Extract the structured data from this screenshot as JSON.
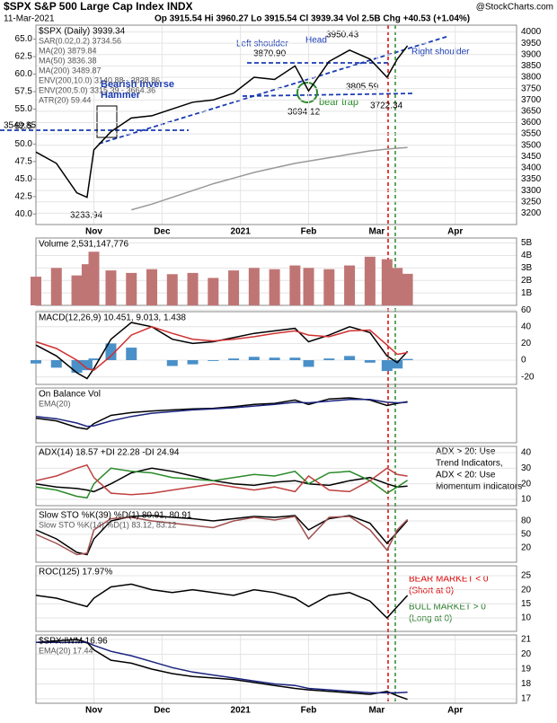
{
  "header": {
    "title": "$SPX S&P 500 Large Cap Index INDX",
    "source": "@StockCharts.com",
    "date": "11-Mar-2021",
    "quote": "Op 3915.54 Hi 3960.27 Lo 3915.54 Cl 3939.34 Vol 2.5B Chg +40.53 (+1.04%)"
  },
  "chart_data": [
    {
      "type": "line",
      "legend": [
        "$SPX (Daily) 3939.34",
        "SAR(0.02,0.2) 3734.56",
        "MA(20) 3879.84",
        "MA(50) 3836.38",
        "MA(200) 3489.87",
        "ENV(200,10.0) 3140.88 - 3838.86",
        "ENV(200,5.0) 3315.39 - 3664.36",
        "ATR(20) 59.44"
      ],
      "x": [
        0,
        6,
        12,
        15,
        17,
        22,
        28,
        34,
        40,
        46,
        52,
        58,
        64,
        70,
        76,
        80,
        86,
        92,
        98,
        103,
        106,
        109
      ],
      "xlim": [
        0,
        141
      ],
      "xticks": [
        {
          "value": 17,
          "label": "Nov"
        },
        {
          "value": 37,
          "label": "Dec"
        },
        {
          "value": 60,
          "label": "2021"
        },
        {
          "value": 80,
          "label": "Feb"
        },
        {
          "value": 100,
          "label": "Mar"
        },
        {
          "value": 123,
          "label": "Apr"
        }
      ],
      "ylim": [
        3150,
        4030
      ],
      "yticks": [
        3200,
        3250,
        3300,
        3350,
        3400,
        3450,
        3500,
        3550,
        3600,
        3650,
        3700,
        3750,
        3800,
        3850,
        3900,
        3950,
        4000
      ],
      "y2lim": [
        38.5,
        67
      ],
      "y2ticks": [
        {
          "value": 40,
          "label": "40.0"
        },
        42.5,
        {
          "value": 45,
          "label": "45.0"
        },
        47.5,
        {
          "value": 50,
          "label": "50.0"
        },
        52.5,
        {
          "value": 55,
          "label": "55.0"
        },
        57.5,
        {
          "value": 60,
          "label": "60.0"
        },
        62.5,
        {
          "value": 65,
          "label": "65.0"
        }
      ],
      "series": [
        {
          "color": "#000000",
          "type": "line",
          "values": [
            3470,
            3420,
            3290,
            3270,
            3480,
            3560,
            3620,
            3630,
            3660,
            3690,
            3700,
            3730,
            3800,
            3790,
            3850,
            3740,
            3870,
            3920,
            3880,
            3800,
            3880,
            3939.34
          ]
        },
        {
          "color": "#999999",
          "type": "line",
          "values": [
            null,
            null,
            null,
            null,
            null,
            null,
            3215,
            3240,
            3270,
            3300,
            3330,
            3355,
            3380,
            3400,
            3420,
            3430,
            3445,
            3460,
            3475,
            3483,
            3487,
            3489.87
          ]
        }
      ],
      "annotations": [
        "Left shoulder",
        "Head",
        "Right shoulder",
        "3950.43",
        "3870.90",
        "3805.59",
        "3694.12",
        "3722.34",
        "bear trap",
        "Bearish Inverse",
        "Hammer",
        "3233.94",
        "3549.85"
      ]
    },
    {
      "type": "bar",
      "legend": [
        "Volume 2,531,147,776"
      ],
      "x": [
        0,
        6,
        12,
        15,
        17,
        22,
        28,
        34,
        40,
        46,
        52,
        58,
        64,
        70,
        76,
        80,
        86,
        92,
        98,
        103,
        106,
        109
      ],
      "xlim": [
        0,
        141
      ],
      "ylim": [
        0,
        5.4
      ],
      "yticks": [
        {
          "value": 1,
          "label": "1B"
        },
        {
          "value": 2,
          "label": "2B"
        },
        {
          "value": 3,
          "label": "3B"
        },
        {
          "value": 4,
          "label": "4B"
        },
        {
          "value": 5,
          "label": "5B"
        }
      ],
      "series": [
        {
          "color": "#c07575",
          "type": "bar",
          "values": [
            2.3,
            3.0,
            2.4,
            3.3,
            4.3,
            2.8,
            2.6,
            2.9,
            2.5,
            2.6,
            2.2,
            2.8,
            3.0,
            2.9,
            3.2,
            3.0,
            2.9,
            3.2,
            3.9,
            3.7,
            3.0,
            2.53
          ]
        }
      ]
    },
    {
      "type": "line",
      "legend": [
        "MACD(12,26,9) 10.451, 9.013, 1.438"
      ],
      "x": [
        0,
        6,
        12,
        15,
        17,
        22,
        28,
        34,
        40,
        46,
        52,
        58,
        64,
        70,
        76,
        80,
        86,
        92,
        98,
        103,
        106,
        109
      ],
      "xlim": [
        0,
        141
      ],
      "ylim": [
        -29,
        58
      ],
      "yticks": [
        -20,
        0,
        20,
        40,
        60
      ],
      "series": [
        {
          "color": "#4a90c8",
          "type": "bar",
          "values": [
            -4,
            -9,
            -15,
            -12,
            2,
            20,
            15,
            0,
            -7,
            -5,
            -1,
            2,
            4,
            3,
            3,
            -8,
            2,
            5,
            -3,
            -13,
            -10,
            1.438
          ]
        },
        {
          "color": "#000000",
          "type": "line",
          "values": [
            18,
            5,
            -15,
            -22,
            -10,
            25,
            45,
            40,
            25,
            20,
            22,
            27,
            32,
            35,
            38,
            22,
            30,
            40,
            33,
            5,
            -3,
            10.451
          ]
        },
        {
          "color": "#d03030",
          "type": "line",
          "values": [
            22,
            14,
            0,
            -10,
            -12,
            5,
            30,
            40,
            32,
            25,
            23,
            25,
            28,
            32,
            35,
            30,
            28,
            35,
            36,
            18,
            7,
            9.013
          ]
        }
      ]
    },
    {
      "type": "line",
      "legend": [
        "On Balance Vol",
        "EMA(20)"
      ],
      "x": [
        0,
        6,
        12,
        15,
        17,
        22,
        28,
        34,
        40,
        46,
        52,
        58,
        64,
        70,
        76,
        80,
        86,
        92,
        98,
        103,
        106,
        109
      ],
      "xlim": [
        0,
        141
      ],
      "ylim": [
        0,
        100
      ],
      "series": [
        {
          "color": "#000000",
          "type": "line",
          "values": [
            45,
            40,
            28,
            25,
            35,
            50,
            55,
            58,
            60,
            62,
            63,
            66,
            70,
            72,
            78,
            70,
            80,
            82,
            78,
            68,
            72,
            75
          ]
        },
        {
          "color": "#1a237e",
          "type": "line",
          "values": [
            48,
            44,
            36,
            30,
            31,
            40,
            48,
            54,
            57,
            60,
            62,
            64,
            67,
            70,
            74,
            73,
            76,
            79,
            79,
            74,
            73,
            74
          ]
        }
      ]
    },
    {
      "type": "line",
      "legend": [
        "ADX(14) 18.57 +DI 22.28 -DI 24.94"
      ],
      "x": [
        0,
        6,
        12,
        15,
        17,
        22,
        28,
        34,
        40,
        46,
        52,
        58,
        64,
        70,
        76,
        80,
        86,
        92,
        98,
        103,
        106,
        109
      ],
      "xlim": [
        0,
        141
      ],
      "ylim": [
        6,
        44
      ],
      "yticks": [
        10,
        20,
        30,
        40
      ],
      "series": [
        {
          "color": "#000000",
          "type": "line",
          "values": [
            20,
            18,
            17,
            16,
            15,
            20,
            27,
            30,
            28,
            25,
            22,
            20,
            19,
            21,
            22,
            20,
            19,
            22,
            24,
            20,
            18,
            18.57
          ]
        },
        {
          "color": "#2a8a2a",
          "type": "line",
          "values": [
            18,
            16,
            12,
            11,
            20,
            30,
            28,
            27,
            24,
            23,
            22,
            24,
            26,
            25,
            28,
            20,
            27,
            28,
            22,
            14,
            18,
            22.28
          ]
        },
        {
          "color": "#c04040",
          "type": "line",
          "values": [
            22,
            25,
            30,
            32,
            24,
            14,
            13,
            14,
            16,
            18,
            20,
            18,
            16,
            18,
            15,
            25,
            16,
            15,
            22,
            30,
            26,
            24.94
          ]
        }
      ],
      "annotations": [
        "ADX > 20: Use",
        "Trend Indicators,",
        "ADX < 20: Use",
        "Momentum Indicators"
      ]
    },
    {
      "type": "line",
      "legend": [
        "Slow STO %K(39) %D(1) 80.91, 80.91",
        "Slow STO %K(14) %D(1) 83.12, 83.12"
      ],
      "x": [
        0,
        6,
        12,
        15,
        17,
        22,
        28,
        34,
        40,
        46,
        52,
        58,
        64,
        70,
        76,
        80,
        86,
        92,
        98,
        103,
        106,
        109
      ],
      "xlim": [
        0,
        141
      ],
      "ylim": [
        -12,
        106
      ],
      "yticks": [
        20,
        50,
        80
      ],
      "series": [
        {
          "color": "#000000",
          "type": "line",
          "values": [
            60,
            40,
            10,
            5,
            40,
            80,
            90,
            92,
            88,
            85,
            80,
            85,
            90,
            88,
            92,
            60,
            85,
            92,
            75,
            30,
            55,
            80.91
          ]
        },
        {
          "color": "#a05050",
          "type": "line",
          "values": [
            50,
            30,
            5,
            8,
            60,
            85,
            88,
            80,
            75,
            70,
            65,
            80,
            88,
            82,
            90,
            40,
            88,
            90,
            60,
            15,
            60,
            83.12
          ]
        }
      ]
    },
    {
      "type": "line",
      "legend": [
        "ROC(125) 17.97%"
      ],
      "x": [
        0,
        6,
        12,
        15,
        17,
        22,
        28,
        34,
        40,
        46,
        52,
        58,
        64,
        70,
        76,
        80,
        86,
        92,
        98,
        103,
        106,
        109
      ],
      "xlim": [
        0,
        141
      ],
      "ylim": [
        5.2,
        28.5
      ],
      "yticks": [
        10,
        15,
        20,
        25
      ],
      "series": [
        {
          "color": "#000000",
          "type": "line",
          "values": [
            18,
            17,
            15,
            14,
            17,
            21,
            22,
            20,
            19,
            20,
            19,
            18,
            20,
            19,
            17,
            14,
            18,
            19,
            16,
            10,
            14,
            17.97
          ]
        }
      ],
      "annotations": [
        "BEAR MARKET < 0",
        "(Short at 0)",
        "BULL MARKET > 0",
        "(Long at 0)"
      ]
    },
    {
      "type": "line",
      "legend": [
        "$SPX:IWM 16.96",
        "EMA(20) 17.44"
      ],
      "x": [
        0,
        6,
        12,
        15,
        17,
        22,
        28,
        34,
        40,
        46,
        52,
        58,
        64,
        70,
        76,
        80,
        86,
        92,
        98,
        103,
        106,
        109
      ],
      "xlim": [
        0,
        141
      ],
      "xticks": [
        {
          "value": 17,
          "label": "Nov"
        },
        {
          "value": 37,
          "label": "Dec"
        },
        {
          "value": 60,
          "label": "2021"
        },
        {
          "value": 80,
          "label": "Feb"
        },
        {
          "value": 100,
          "label": "Mar"
        },
        {
          "value": 123,
          "label": "Apr"
        }
      ],
      "ylim": [
        16.7,
        21.3
      ],
      "yticks": [
        17,
        18,
        19,
        20,
        21
      ],
      "series": [
        {
          "color": "#000000",
          "type": "line",
          "values": [
            20.8,
            20.9,
            21.0,
            20.8,
            20.3,
            19.6,
            19.4,
            19.0,
            18.7,
            18.5,
            18.4,
            18.3,
            18.1,
            17.9,
            17.7,
            17.6,
            17.5,
            17.4,
            17.3,
            17.5,
            17.2,
            16.96
          ]
        },
        {
          "color": "#1a237e",
          "type": "line",
          "values": [
            20.8,
            20.8,
            20.8,
            20.8,
            20.6,
            20.2,
            19.9,
            19.5,
            19.1,
            18.8,
            18.6,
            18.4,
            18.2,
            18.0,
            17.9,
            17.7,
            17.6,
            17.5,
            17.4,
            17.4,
            17.4,
            17.44
          ]
        }
      ]
    }
  ]
}
